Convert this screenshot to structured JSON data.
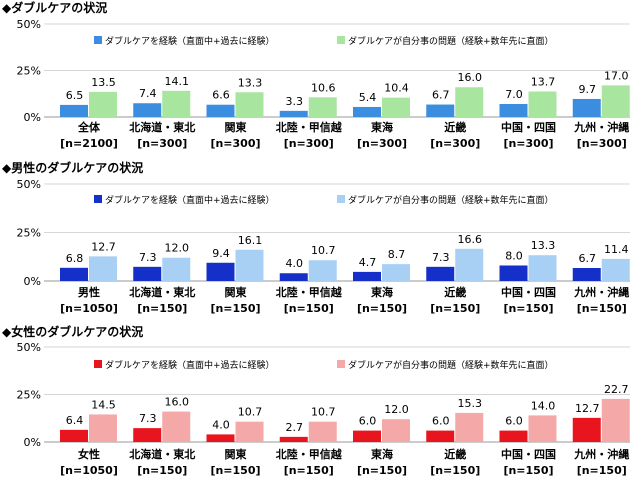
{
  "charts_meta": [
    {
      "color_a": "#3b8de0",
      "color_b": "#a8e6a0"
    },
    {
      "color_a": "#1530c8",
      "color_b": "#a8d0f5"
    },
    {
      "color_a": "#e8141e",
      "color_b": "#f5a8a8"
    }
  ],
  "chart_data": [
    {
      "type": "bar",
      "title": "◆ダブルケアの状況",
      "categories": [
        "全体",
        "北海道・東北",
        "関東",
        "北陸・甲信越",
        "東海",
        "近畿",
        "中国・四国",
        "九州・沖縄"
      ],
      "category_n": [
        "[n=2100]",
        "[n=300]",
        "[n=300]",
        "[n=300]",
        "[n=300]",
        "[n=300]",
        "[n=300]",
        "[n=300]"
      ],
      "series": [
        {
          "name": "ダブルケアを経験（直面中+過去に経験）",
          "values": [
            6.5,
            7.4,
            6.6,
            3.3,
            5.4,
            6.7,
            7.0,
            9.7
          ]
        },
        {
          "name": "ダブルケアが自分事の問題（経験+数年先に直面）",
          "values": [
            13.5,
            14.1,
            13.3,
            10.6,
            10.4,
            16.0,
            13.7,
            17.0
          ]
        }
      ],
      "yticks": [
        "50%",
        "25%",
        "0%"
      ],
      "ylim": [
        0,
        50
      ],
      "grid": true,
      "legend_placement": "top"
    },
    {
      "type": "bar",
      "title": "◆男性のダブルケアの状況",
      "categories": [
        "男性",
        "北海道・東北",
        "関東",
        "北陸・甲信越",
        "東海",
        "近畿",
        "中国・四国",
        "九州・沖縄"
      ],
      "category_n": [
        "[n=1050]",
        "[n=150]",
        "[n=150]",
        "[n=150]",
        "[n=150]",
        "[n=150]",
        "[n=150]",
        "[n=150]"
      ],
      "series": [
        {
          "name": "ダブルケアを経験（直面中+過去に経験）",
          "values": [
            6.8,
            7.3,
            9.4,
            4.0,
            4.7,
            7.3,
            8.0,
            6.7
          ]
        },
        {
          "name": "ダブルケアが自分事の問題（経験+数年先に直面）",
          "values": [
            12.7,
            12.0,
            16.1,
            10.7,
            8.7,
            16.6,
            13.3,
            11.4
          ]
        }
      ],
      "yticks": [
        "50%",
        "25%",
        "0%"
      ],
      "ylim": [
        0,
        50
      ],
      "grid": true,
      "legend_placement": "top"
    },
    {
      "type": "bar",
      "title": "◆女性のダブルケアの状況",
      "categories": [
        "女性",
        "北海道・東北",
        "関東",
        "北陸・甲信越",
        "東海",
        "近畿",
        "中国・四国",
        "九州・沖縄"
      ],
      "category_n": [
        "[n=1050]",
        "[n=150]",
        "[n=150]",
        "[n=150]",
        "[n=150]",
        "[n=150]",
        "[n=150]",
        "[n=150]"
      ],
      "series": [
        {
          "name": "ダブルケアを経験（直面中+過去に経験）",
          "values": [
            6.4,
            7.3,
            4.0,
            2.7,
            6.0,
            6.0,
            6.0,
            12.7
          ]
        },
        {
          "name": "ダブルケアが自分事の問題（経験+数年先に直面）",
          "values": [
            14.5,
            16.0,
            10.7,
            10.7,
            12.0,
            15.3,
            14.0,
            22.7
          ]
        }
      ],
      "yticks": [
        "50%",
        "25%",
        "0%"
      ],
      "ylim": [
        0,
        50
      ],
      "grid": true,
      "legend_placement": "top"
    }
  ]
}
